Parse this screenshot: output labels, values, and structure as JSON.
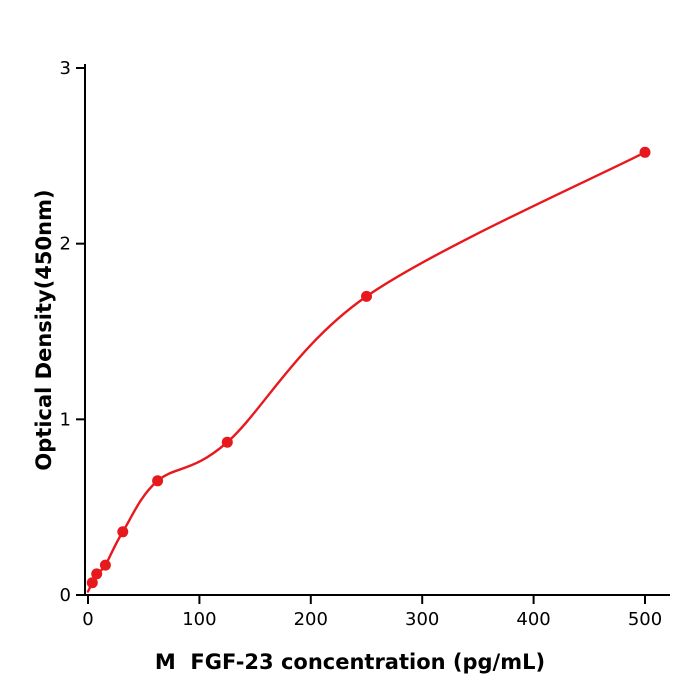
{
  "chart_data": {
    "type": "scatter",
    "title": "",
    "xlabel": "M  FGF-23 concentration (pg/mL)",
    "ylabel": "Optical Density(450nm)",
    "x": [
      3.9,
      7.8,
      15.6,
      31.2,
      62.5,
      125,
      250,
      500
    ],
    "y": [
      0.07,
      0.12,
      0.17,
      0.36,
      0.65,
      0.87,
      1.7,
      2.52
    ],
    "curve_start": [
      0,
      0.02
    ],
    "xlim": [
      0,
      500
    ],
    "ylim": [
      0,
      3
    ],
    "xticks": [
      0,
      100,
      200,
      300,
      400,
      500
    ],
    "yticks": [
      0,
      1,
      2,
      3
    ],
    "grid": false,
    "legend": false,
    "marker_color": "#e8191d",
    "line_color": "#e8191d",
    "axis_color": "#000000"
  }
}
